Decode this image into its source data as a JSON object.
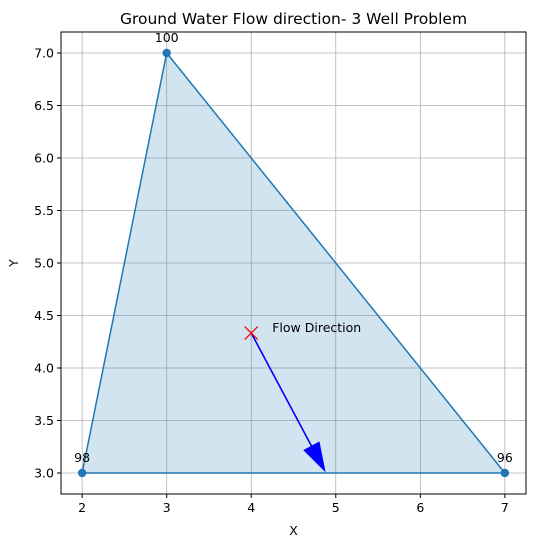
{
  "chart_data": {
    "type": "scatter",
    "title": "Ground Water Flow direction- 3 Well Problem",
    "xlabel": "X",
    "ylabel": "Y",
    "xlim": [
      1.75,
      7.25
    ],
    "ylim": [
      2.8,
      7.2
    ],
    "grid": true,
    "x_ticks": [
      "2",
      "3",
      "4",
      "5",
      "6",
      "7"
    ],
    "y_ticks": [
      "3.0",
      "3.5",
      "4.0",
      "4.5",
      "5.0",
      "5.5",
      "6.0",
      "6.5",
      "7.0"
    ],
    "wells": [
      {
        "x": 2,
        "y": 3,
        "label": "98"
      },
      {
        "x": 3,
        "y": 7,
        "label": "100"
      },
      {
        "x": 7,
        "y": 3,
        "label": "96"
      }
    ],
    "centroid": {
      "x": 4.0,
      "y": 4.333
    },
    "arrow": {
      "x": 4.0,
      "y": 4.333,
      "x_end": 4.87,
      "y_end": 3.02
    },
    "annotation": "Flow Direction",
    "colors": {
      "line": "#1f77b4",
      "fill": "#1f77b4",
      "marker": "#1f77b4",
      "centroid": "#ff0000",
      "arrow": "#0000ff",
      "grid": "#b0b0b0"
    }
  }
}
